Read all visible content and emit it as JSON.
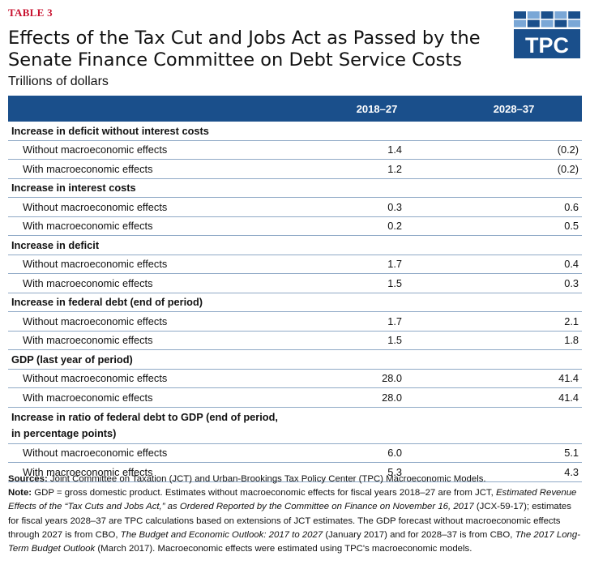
{
  "header": {
    "tag": "TABLE 3",
    "title": "Effects of the Tax Cut and Jobs Act as Passed by the Senate Finance Committee on Debt Service Costs",
    "subtitle": "Trillions of dollars",
    "logo_text": "TPC"
  },
  "table": {
    "columns": [
      "",
      "2018–27",
      "2028–37"
    ],
    "sections": [
      {
        "heading": "Increase in deficit without interest costs",
        "rows": [
          {
            "label": "Without macroeconomic effects",
            "v1": "1.4",
            "v2": "(0.2)"
          },
          {
            "label": "With macroeconomic effects",
            "v1": "1.2",
            "v2": "(0.2)"
          }
        ]
      },
      {
        "heading": "Increase in interest costs",
        "rows": [
          {
            "label": "Without macroeconomic effects",
            "v1": "0.3",
            "v2": "0.6"
          },
          {
            "label": "With macroeconomic effects",
            "v1": "0.2",
            "v2": "0.5"
          }
        ]
      },
      {
        "heading": "Increase in deficit",
        "rows": [
          {
            "label": "Without macroeconomic effects",
            "v1": "1.7",
            "v2": "0.4"
          },
          {
            "label": "With macroeconomic effects",
            "v1": "1.5",
            "v2": "0.3"
          }
        ]
      },
      {
        "heading": "Increase in federal debt (end of period)",
        "rows": [
          {
            "label": "Without macroeconomic effects",
            "v1": "1.7",
            "v2": "2.1"
          },
          {
            "label": "With macroeconomic effects",
            "v1": "1.5",
            "v2": "1.8"
          }
        ]
      },
      {
        "heading": "GDP (last year of period)",
        "rows": [
          {
            "label": "Without macroeconomic effects",
            "v1": "28.0",
            "v2": "41.4"
          },
          {
            "label": "With macroeconomic effects",
            "v1": "28.0",
            "v2": "41.4"
          }
        ]
      },
      {
        "heading": "Increase in ratio of federal debt to GDP (end of period, in percentage points)",
        "rows": [
          {
            "label": "Without macroeconomic effects",
            "v1": "6.0",
            "v2": "5.1"
          },
          {
            "label": "With macroeconomic effects",
            "v1": "5.3",
            "v2": "4.3"
          }
        ]
      }
    ]
  },
  "notes": {
    "sources_label": "Sources:",
    "sources_text": " Joint Committee on Taxation (JCT) and Urban-Brookings Tax Policy Center (TPC) Macroeconomic Models.",
    "note_label": "Note:",
    "note_1": " GDP = gross domestic product. Estimates without macroeconomic effects for fiscal years 2018–27 are from JCT, ",
    "note_2": "Estimated Revenue Effects of the “Tax Cuts and Jobs Act,” as Ordered Reported by the Committee on Finance on November 16, 2017",
    "note_3": " (JCX-59-17); estimates for fiscal years 2028–37 are TPC calculations based on extensions of JCT estimates. The GDP forecast without macroeconomic effects through 2027 is from CBO, ",
    "note_4": "The Budget and Economic Outlook: 2017 to 2027",
    "note_5": " (January 2017) and for 2028–37 is from CBO, ",
    "note_6": "The 2017 Long-Term Budget Outlook",
    "note_7": " (March 2017). Macroeconomic effects were estimated using TPC's macroeconomic models."
  },
  "colors": {
    "header_bg": "#1a4f8b",
    "tag": "#c8102e",
    "logo": "#1a4f8b",
    "logo_light": "#7aa7d6"
  }
}
